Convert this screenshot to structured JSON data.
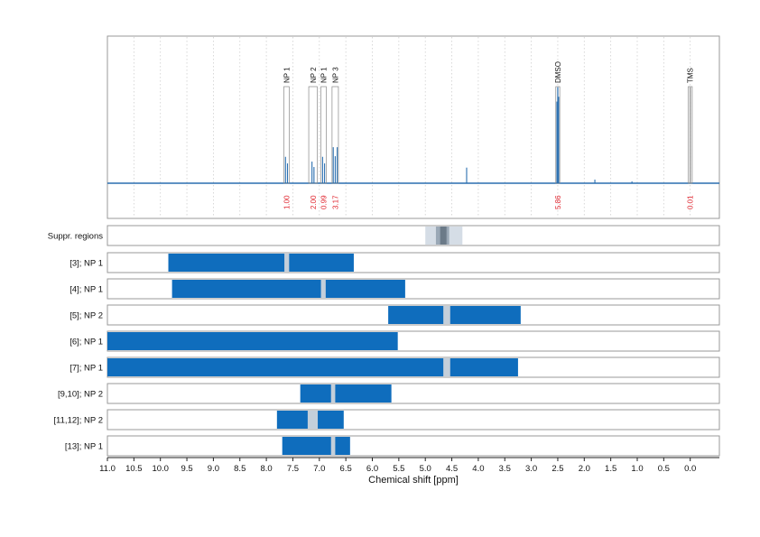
{
  "chart_data": {
    "type": "nmr-spectrum-with-region-bars",
    "xlabel": "Chemical shift [ppm]",
    "xlim": [
      11.0,
      -0.5
    ],
    "x_ticks": [
      "11.0",
      "10.5",
      "10.0",
      "9.5",
      "9.0",
      "8.5",
      "8.0",
      "7.5",
      "7.0",
      "6.5",
      "6.0",
      "5.5",
      "5.0",
      "4.5",
      "4.0",
      "3.5",
      "3.0",
      "2.5",
      "2.0",
      "1.5",
      "1.0",
      "0.5",
      "0.0"
    ],
    "grid": "vertical dotted",
    "colors": {
      "spectrum": "#2a6fb0",
      "bar": "#0f6dbd",
      "gap": "#c4cfda",
      "integral": "#e0262f",
      "suppr_light": "#d5dde6",
      "suppr_mid": "#9aa8b6",
      "suppr_dark": "#6b7a88"
    },
    "peaks": [
      {
        "label": "NP 1",
        "center": 7.62,
        "half_width": 0.05,
        "height": 0.22,
        "integral": "1.00"
      },
      {
        "label": "NP 2",
        "center": 7.12,
        "half_width": 0.08,
        "height": 0.18,
        "integral": "2.00"
      },
      {
        "label": "NP 1",
        "center": 6.92,
        "half_width": 0.05,
        "height": 0.22,
        "integral": "0.99"
      },
      {
        "label": "NP 3",
        "center": 6.7,
        "half_width": 0.06,
        "height": 0.3,
        "integral": "3.17"
      },
      {
        "label": "DMSO",
        "center": 2.5,
        "half_width": 0.03,
        "height": 0.8,
        "integral": "5.86"
      },
      {
        "label": "TMS",
        "center": 0.0,
        "half_width": 0.01,
        "height": 0.8,
        "integral": "0.01"
      }
    ],
    "minor_peaks": [
      {
        "x": 4.22,
        "height": 0.13
      },
      {
        "x": 1.8,
        "height": 0.03
      },
      {
        "x": 1.1,
        "height": 0.015
      }
    ],
    "suppression_row": {
      "label": "Suppr. regions",
      "light": [
        5.0,
        4.3
      ],
      "mid": [
        4.8,
        4.55
      ],
      "dark": [
        4.72,
        4.6
      ]
    },
    "rows": [
      {
        "label": "[3]; NP 1",
        "range": [
          9.85,
          6.35
        ],
        "gap": [
          7.66,
          7.57
        ]
      },
      {
        "label": "[4]; NP 1",
        "range": [
          9.78,
          5.38
        ],
        "gap": [
          6.97,
          6.88
        ]
      },
      {
        "label": "[5]; NP 2",
        "range": [
          5.7,
          3.2
        ],
        "gap": [
          4.66,
          4.53
        ]
      },
      {
        "label": "[6]; NP 1",
        "range": [
          11.0,
          5.52
        ],
        "gap": null
      },
      {
        "label": "[7]; NP 1",
        "range": [
          11.0,
          3.25
        ],
        "gap": [
          4.66,
          4.53
        ]
      },
      {
        "label": "[9,10]; NP 2",
        "range": [
          7.36,
          5.64
        ],
        "gap": [
          6.78,
          6.7
        ]
      },
      {
        "label": "[11,12]; NP 2",
        "range": [
          7.8,
          6.54
        ],
        "gap": [
          7.22,
          7.03
        ]
      },
      {
        "label": "[13]; NP 1",
        "range": [
          7.7,
          6.42
        ],
        "gap": [
          6.78,
          6.7
        ]
      }
    ]
  }
}
